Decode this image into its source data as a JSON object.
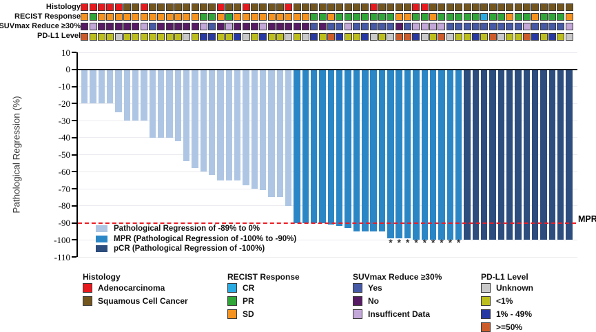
{
  "figure": {
    "tracks": {
      "rows": [
        {
          "name": "histology",
          "label": "Histology",
          "colors": {
            "adeno": "#e8191d",
            "squam": "#73551e"
          },
          "cells": [
            "adeno",
            "adeno",
            "adeno",
            "adeno",
            "adeno",
            "squam",
            "squam",
            "adeno",
            "squam",
            "squam",
            "squam",
            "squam",
            "squam",
            "squam",
            "squam",
            "squam",
            "adeno",
            "squam",
            "squam",
            "adeno",
            "squam",
            "squam",
            "squam",
            "squam",
            "adeno",
            "squam",
            "squam",
            "squam",
            "squam",
            "squam",
            "squam",
            "squam",
            "squam",
            "squam",
            "adeno",
            "squam",
            "squam",
            "squam",
            "squam",
            "adeno",
            "adeno",
            "squam",
            "squam",
            "squam",
            "squam",
            "squam",
            "squam",
            "squam",
            "squam",
            "squam",
            "squam",
            "squam",
            "squam",
            "squam",
            "squam",
            "squam",
            "squam",
            "squam"
          ]
        },
        {
          "name": "recist",
          "label": "RECIST Response",
          "colors": {
            "CR": "#29abe2",
            "PR": "#2fa637",
            "SD": "#f6921e"
          },
          "cells": [
            "SD",
            "PR",
            "SD",
            "SD",
            "SD",
            "SD",
            "SD",
            "SD",
            "SD",
            "SD",
            "SD",
            "SD",
            "SD",
            "SD",
            "PR",
            "PR",
            "SD",
            "PR",
            "SD",
            "SD",
            "SD",
            "SD",
            "SD",
            "SD",
            "SD",
            "SD",
            "SD",
            "PR",
            "PR",
            "SD",
            "PR",
            "PR",
            "PR",
            "PR",
            "PR",
            "PR",
            "PR",
            "SD",
            "SD",
            "PR",
            "PR",
            "SD",
            "PR",
            "PR",
            "PR",
            "PR",
            "PR",
            "CR",
            "PR",
            "PR",
            "SD",
            "PR",
            "PR",
            "SD",
            "PR",
            "PR",
            "PR",
            "SD"
          ]
        },
        {
          "name": "suvmax",
          "label": "SUVmax Reduce ≥30%",
          "colors": {
            "yes": "#4659a7",
            "no": "#571a65",
            "insuff": "#c3a7d9"
          },
          "cells": [
            "no",
            "insuff",
            "no",
            "no",
            "no",
            "no",
            "no",
            "insuff",
            "yes",
            "no",
            "no",
            "no",
            "no",
            "no",
            "insuff",
            "yes",
            "no",
            "insuff",
            "no",
            "no",
            "no",
            "insuff",
            "no",
            "no",
            "no",
            "no",
            "no",
            "yes",
            "no",
            "yes",
            "yes",
            "insuff",
            "yes",
            "yes",
            "yes",
            "yes",
            "yes",
            "no",
            "yes",
            "insuff",
            "insuff",
            "insuff",
            "insuff",
            "yes",
            "yes",
            "yes",
            "yes",
            "yes",
            "yes",
            "yes",
            "yes",
            "yes",
            "insuff",
            "yes",
            "yes",
            "yes",
            "yes",
            "insuff"
          ]
        },
        {
          "name": "pdl1",
          "label": "PD-L1 Level",
          "colors": {
            "unknown": "#c9c9c9",
            "lt1": "#bcbe1d",
            "1to49": "#2838a3",
            "ge50": "#cd5c2b"
          },
          "cells": [
            "ge50",
            "lt1",
            "lt1",
            "lt1",
            "unknown",
            "lt1",
            "lt1",
            "lt1",
            "lt1",
            "lt1",
            "lt1",
            "lt1",
            "unknown",
            "lt1",
            "1to49",
            "1to49",
            "lt1",
            "lt1",
            "1to49",
            "unknown",
            "lt1",
            "1to49",
            "lt1",
            "lt1",
            "unknown",
            "lt1",
            "unknown",
            "1to49",
            "lt1",
            "ge50",
            "1to49",
            "lt1",
            "lt1",
            "1to49",
            "unknown",
            "lt1",
            "unknown",
            "ge50",
            "ge50",
            "1to49",
            "unknown",
            "lt1",
            "ge50",
            "unknown",
            "lt1",
            "lt1",
            "1to49",
            "lt1",
            "ge50",
            "unknown",
            "lt1",
            "lt1",
            "ge50",
            "1to49",
            "lt1",
            "1to49",
            "lt1",
            "unknown"
          ]
        }
      ]
    }
  },
  "chart_data": {
    "type": "bar",
    "title": "",
    "xlabel": "",
    "ylabel": "Pathological Regression (%)",
    "ylim": [
      -110,
      10
    ],
    "yticks": [
      10,
      0,
      -10,
      -20,
      -30,
      -40,
      -50,
      -60,
      -70,
      -80,
      -90,
      -100,
      -110
    ],
    "grid": true,
    "n_bars": 58,
    "values": [
      -20,
      -20,
      -20,
      -20,
      -25,
      -30,
      -30,
      -30,
      -40,
      -40,
      -40,
      -42,
      -54,
      -58,
      -60,
      -62,
      -65,
      -65,
      -65,
      -68,
      -70,
      -71,
      -75,
      -75,
      -80,
      -90,
      -90,
      -90,
      -90,
      -91,
      -92,
      -93,
      -95,
      -95,
      -95,
      -95,
      -99,
      -99,
      -99,
      -100,
      -100,
      -100,
      -100,
      -100,
      -100,
      -100,
      -100,
      -100,
      -100,
      -100,
      -100,
      -100,
      -100,
      -100,
      -100,
      -100,
      -100,
      -100
    ],
    "bar_groups": [
      "light",
      "light",
      "light",
      "light",
      "light",
      "light",
      "light",
      "light",
      "light",
      "light",
      "light",
      "light",
      "light",
      "light",
      "light",
      "light",
      "light",
      "light",
      "light",
      "light",
      "light",
      "light",
      "light",
      "light",
      "light",
      "mpr",
      "mpr",
      "mpr",
      "mpr",
      "mpr",
      "mpr",
      "mpr",
      "mpr",
      "mpr",
      "mpr",
      "mpr",
      "mpr",
      "mpr",
      "mpr",
      "mpr",
      "mpr",
      "mpr",
      "mpr",
      "mpr",
      "mpr",
      "pcr",
      "pcr",
      "pcr",
      "pcr",
      "pcr",
      "pcr",
      "pcr",
      "pcr",
      "pcr",
      "pcr",
      "pcr",
      "pcr",
      "pcr"
    ],
    "group_colors": {
      "light": "#aec6e3",
      "mpr": "#2b86c6",
      "pcr": "#2c4d7d"
    },
    "reference_line": {
      "value": -90,
      "label": "MPR",
      "color": "#ed1c24",
      "style": "dashed"
    },
    "asterisk_bars": [
      37,
      38,
      39,
      40,
      41,
      42,
      43,
      44,
      45
    ],
    "asterisk_symbol": "*",
    "legend": {
      "position": "inside-bottom-left",
      "items": [
        {
          "key": "light",
          "label": "Pathological Regression of -89% to 0%"
        },
        {
          "key": "mpr",
          "label": "MPR (Pathological Regression of -100% to -90%)"
        },
        {
          "key": "pcr",
          "label": "pCR (Pathological Regression of -100%)"
        }
      ]
    }
  },
  "bottom_legend": {
    "groups": [
      {
        "title": "Histology",
        "items": [
          {
            "color": "#e8191d",
            "label": "Adenocarcinoma"
          },
          {
            "color": "#73551e",
            "label": "Squamous Cell Cancer"
          }
        ]
      },
      {
        "title": "RECIST Response",
        "items": [
          {
            "color": "#29abe2",
            "label": "CR"
          },
          {
            "color": "#2fa637",
            "label": "PR"
          },
          {
            "color": "#f6921e",
            "label": "SD"
          }
        ]
      },
      {
        "title": "SUVmax Reduce ≥30%",
        "items": [
          {
            "color": "#4659a7",
            "label": "Yes"
          },
          {
            "color": "#571a65",
            "label": "No"
          },
          {
            "color": "#c3a7d9",
            "label": "Insufficent Data"
          }
        ]
      },
      {
        "title": "PD-L1 Level",
        "items": [
          {
            "color": "#c9c9c9",
            "label": "Unknown"
          },
          {
            "color": "#bcbe1d",
            "label": "<1%"
          },
          {
            "color": "#2838a3",
            "label": "1% - 49%"
          },
          {
            "color": "#cd5c2b",
            "label": ">=50%"
          }
        ]
      }
    ]
  }
}
